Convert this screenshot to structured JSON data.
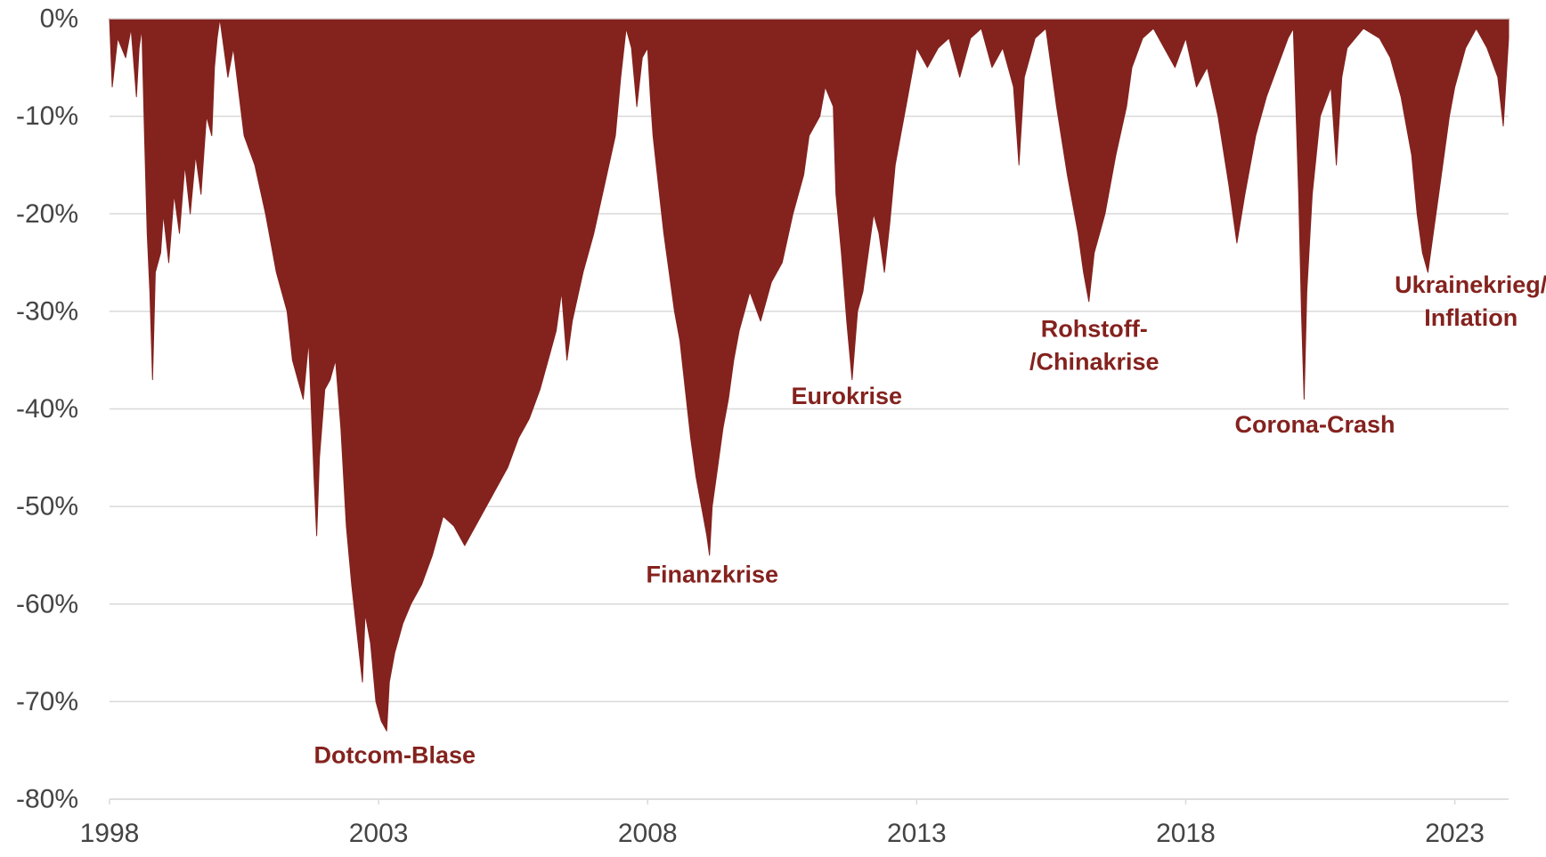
{
  "chart_data": {
    "type": "area",
    "title": "",
    "xlabel": "",
    "ylabel": "",
    "x_range": [
      1998.0,
      2024.0
    ],
    "ylim": [
      -80,
      0
    ],
    "grid": true,
    "y_ticks": [
      {
        "value": 0,
        "label": "0%"
      },
      {
        "value": -10,
        "label": "-10%"
      },
      {
        "value": -20,
        "label": "-20%"
      },
      {
        "value": -30,
        "label": "-30%"
      },
      {
        "value": -40,
        "label": "-40%"
      },
      {
        "value": -50,
        "label": "-50%"
      },
      {
        "value": -60,
        "label": "-60%"
      },
      {
        "value": -70,
        "label": "-70%"
      },
      {
        "value": -80,
        "label": "-80%"
      }
    ],
    "x_ticks": [
      {
        "value": 1998,
        "label": "1998"
      },
      {
        "value": 2003,
        "label": "2003"
      },
      {
        "value": 2008,
        "label": "2008"
      },
      {
        "value": 2013,
        "label": "2013"
      },
      {
        "value": 2018,
        "label": "2018"
      },
      {
        "value": 2023,
        "label": "2023"
      }
    ],
    "series": [
      {
        "color": "#84221e",
        "points": [
          [
            1998.0,
            0
          ],
          [
            1998.05,
            -7
          ],
          [
            1998.15,
            -2
          ],
          [
            1998.3,
            -4
          ],
          [
            1998.4,
            -1
          ],
          [
            1998.5,
            -8
          ],
          [
            1998.55,
            -3
          ],
          [
            1998.6,
            -1
          ],
          [
            1998.65,
            -12
          ],
          [
            1998.7,
            -22
          ],
          [
            1998.75,
            -28
          ],
          [
            1998.8,
            -37
          ],
          [
            1998.85,
            -26
          ],
          [
            1998.95,
            -24
          ],
          [
            1999.0,
            -20
          ],
          [
            1999.1,
            -25
          ],
          [
            1999.2,
            -18
          ],
          [
            1999.3,
            -22
          ],
          [
            1999.4,
            -15
          ],
          [
            1999.5,
            -20
          ],
          [
            1999.6,
            -14
          ],
          [
            1999.7,
            -18
          ],
          [
            1999.8,
            -10
          ],
          [
            1999.9,
            -12
          ],
          [
            1999.95,
            -5
          ],
          [
            2000.0,
            -2
          ],
          [
            2000.05,
            0
          ],
          [
            2000.1,
            -2
          ],
          [
            2000.2,
            -6
          ],
          [
            2000.3,
            -3
          ],
          [
            2000.5,
            -12
          ],
          [
            2000.7,
            -15
          ],
          [
            2000.9,
            -20
          ],
          [
            2001.1,
            -26
          ],
          [
            2001.3,
            -30
          ],
          [
            2001.4,
            -35
          ],
          [
            2001.6,
            -39
          ],
          [
            2001.7,
            -33
          ],
          [
            2001.8,
            -47
          ],
          [
            2001.85,
            -53
          ],
          [
            2001.9,
            -45
          ],
          [
            2002.0,
            -38
          ],
          [
            2002.1,
            -37
          ],
          [
            2002.2,
            -35
          ],
          [
            2002.3,
            -42
          ],
          [
            2002.4,
            -52
          ],
          [
            2002.5,
            -58
          ],
          [
            2002.6,
            -63
          ],
          [
            2002.7,
            -68
          ],
          [
            2002.75,
            -61
          ],
          [
            2002.85,
            -64
          ],
          [
            2002.95,
            -70
          ],
          [
            2003.05,
            -72
          ],
          [
            2003.15,
            -73
          ],
          [
            2003.2,
            -68
          ],
          [
            2003.3,
            -65
          ],
          [
            2003.45,
            -62
          ],
          [
            2003.6,
            -60
          ],
          [
            2003.8,
            -58
          ],
          [
            2004.0,
            -55
          ],
          [
            2004.2,
            -51
          ],
          [
            2004.4,
            -52
          ],
          [
            2004.6,
            -54
          ],
          [
            2004.8,
            -52
          ],
          [
            2005.0,
            -50
          ],
          [
            2005.2,
            -48
          ],
          [
            2005.4,
            -46
          ],
          [
            2005.6,
            -43
          ],
          [
            2005.8,
            -41
          ],
          [
            2006.0,
            -38
          ],
          [
            2006.2,
            -34
          ],
          [
            2006.3,
            -32
          ],
          [
            2006.4,
            -28
          ],
          [
            2006.5,
            -35
          ],
          [
            2006.6,
            -31
          ],
          [
            2006.8,
            -26
          ],
          [
            2007.0,
            -22
          ],
          [
            2007.2,
            -17
          ],
          [
            2007.4,
            -12
          ],
          [
            2007.5,
            -6
          ],
          [
            2007.6,
            -1
          ],
          [
            2007.7,
            -3
          ],
          [
            2007.8,
            -9
          ],
          [
            2007.9,
            -4
          ],
          [
            2008.0,
            -3
          ],
          [
            2008.05,
            -8
          ],
          [
            2008.1,
            -12
          ],
          [
            2008.2,
            -17
          ],
          [
            2008.3,
            -22
          ],
          [
            2008.4,
            -26
          ],
          [
            2008.5,
            -30
          ],
          [
            2008.6,
            -33
          ],
          [
            2008.7,
            -38
          ],
          [
            2008.8,
            -43
          ],
          [
            2008.9,
            -47
          ],
          [
            2009.0,
            -50
          ],
          [
            2009.1,
            -53
          ],
          [
            2009.15,
            -55
          ],
          [
            2009.2,
            -50
          ],
          [
            2009.3,
            -46
          ],
          [
            2009.4,
            -42
          ],
          [
            2009.5,
            -39
          ],
          [
            2009.6,
            -35
          ],
          [
            2009.7,
            -32
          ],
          [
            2009.8,
            -30
          ],
          [
            2009.9,
            -28
          ],
          [
            2010.1,
            -31
          ],
          [
            2010.3,
            -27
          ],
          [
            2010.5,
            -25
          ],
          [
            2010.7,
            -20
          ],
          [
            2010.9,
            -16
          ],
          [
            2011.0,
            -12
          ],
          [
            2011.2,
            -10
          ],
          [
            2011.3,
            -7
          ],
          [
            2011.45,
            -9
          ],
          [
            2011.5,
            -18
          ],
          [
            2011.6,
            -24
          ],
          [
            2011.7,
            -31
          ],
          [
            2011.8,
            -37
          ],
          [
            2011.9,
            -30
          ],
          [
            2012.0,
            -28
          ],
          [
            2012.1,
            -24
          ],
          [
            2012.2,
            -20
          ],
          [
            2012.3,
            -22
          ],
          [
            2012.4,
            -26
          ],
          [
            2012.5,
            -21
          ],
          [
            2012.6,
            -15
          ],
          [
            2012.7,
            -12
          ],
          [
            2012.8,
            -9
          ],
          [
            2012.9,
            -6
          ],
          [
            2013.0,
            -3
          ],
          [
            2013.2,
            -5
          ],
          [
            2013.4,
            -3
          ],
          [
            2013.6,
            -2
          ],
          [
            2013.8,
            -6
          ],
          [
            2014.0,
            -2
          ],
          [
            2014.2,
            -1
          ],
          [
            2014.4,
            -5
          ],
          [
            2014.6,
            -3
          ],
          [
            2014.8,
            -7
          ],
          [
            2014.9,
            -15
          ],
          [
            2015.0,
            -6
          ],
          [
            2015.2,
            -2
          ],
          [
            2015.4,
            -1
          ],
          [
            2015.6,
            -9
          ],
          [
            2015.8,
            -16
          ],
          [
            2016.0,
            -22
          ],
          [
            2016.1,
            -26
          ],
          [
            2016.2,
            -29
          ],
          [
            2016.3,
            -24
          ],
          [
            2016.5,
            -20
          ],
          [
            2016.7,
            -14
          ],
          [
            2016.9,
            -9
          ],
          [
            2017.0,
            -5
          ],
          [
            2017.2,
            -2
          ],
          [
            2017.4,
            -1
          ],
          [
            2017.6,
            -3
          ],
          [
            2017.8,
            -5
          ],
          [
            2018.0,
            -2
          ],
          [
            2018.2,
            -7
          ],
          [
            2018.4,
            -5
          ],
          [
            2018.6,
            -10
          ],
          [
            2018.8,
            -17
          ],
          [
            2018.95,
            -23
          ],
          [
            2019.1,
            -18
          ],
          [
            2019.3,
            -12
          ],
          [
            2019.5,
            -8
          ],
          [
            2019.7,
            -5
          ],
          [
            2019.9,
            -2
          ],
          [
            2020.0,
            -1
          ],
          [
            2020.1,
            -18
          ],
          [
            2020.15,
            -30
          ],
          [
            2020.2,
            -39
          ],
          [
            2020.25,
            -28
          ],
          [
            2020.35,
            -18
          ],
          [
            2020.5,
            -10
          ],
          [
            2020.7,
            -7
          ],
          [
            2020.8,
            -15
          ],
          [
            2020.9,
            -6
          ],
          [
            2021.0,
            -3
          ],
          [
            2021.3,
            -1
          ],
          [
            2021.6,
            -2
          ],
          [
            2021.8,
            -4
          ],
          [
            2022.0,
            -8
          ],
          [
            2022.2,
            -14
          ],
          [
            2022.3,
            -20
          ],
          [
            2022.4,
            -24
          ],
          [
            2022.5,
            -26
          ],
          [
            2022.6,
            -22
          ],
          [
            2022.7,
            -18
          ],
          [
            2022.8,
            -14
          ],
          [
            2022.9,
            -10
          ],
          [
            2023.0,
            -7
          ],
          [
            2023.2,
            -3
          ],
          [
            2023.4,
            -1
          ],
          [
            2023.6,
            -3
          ],
          [
            2023.8,
            -6
          ],
          [
            2023.9,
            -11
          ],
          [
            2024.0,
            -2
          ]
        ]
      }
    ],
    "annotations": [
      {
        "lines": [
          "Dotcom-Blase"
        ],
        "x": 2003.3,
        "y": -76.3
      },
      {
        "lines": [
          "Finanzkrise"
        ],
        "x": 2009.2,
        "y": -57.8
      },
      {
        "lines": [
          "Eurokrise"
        ],
        "x": 2011.7,
        "y": -39.5
      },
      {
        "lines": [
          "Rohstoff-",
          "/Chinakrise"
        ],
        "x": 2016.3,
        "y": -32.6
      },
      {
        "lines": [
          "Corona-Crash"
        ],
        "x": 2020.4,
        "y": -42.4
      },
      {
        "lines": [
          "Ukrainekrieg/",
          "Inflation"
        ],
        "x": 2023.3,
        "y": -28.1
      }
    ],
    "colors": {
      "fill": "#84221e",
      "annotation": "#84221e",
      "grid": "#d9d9d9",
      "tick_label": "#444444"
    }
  }
}
